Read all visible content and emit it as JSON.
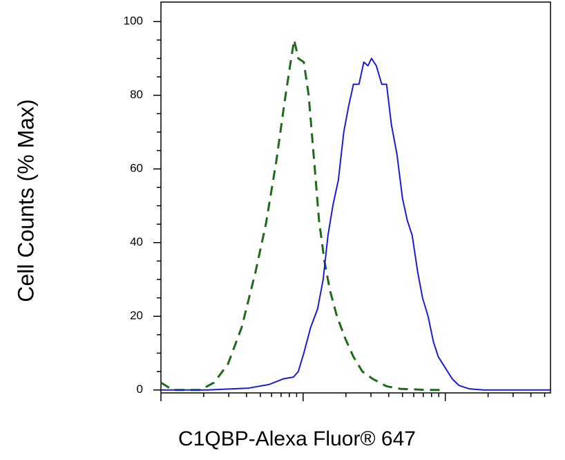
{
  "chart_data": {
    "type": "line",
    "x_label": "C1QBP-Alexa Fluor® 647",
    "y_label": "Cell Counts (% Max)",
    "xlog": true,
    "xlim": [
      0,
      2.74
    ],
    "xticks": [
      0,
      1,
      2
    ],
    "ylim": [
      -0.8,
      105.3
    ],
    "yticks": [
      0,
      20,
      40,
      60,
      80,
      100
    ],
    "series": [
      {
        "color": "#1b6a1b",
        "dashed": true,
        "x": [
          0,
          0.083,
          0.277,
          0.374,
          0.471,
          0.568,
          0.665,
          0.738,
          0.811,
          0.869,
          0.908,
          0.937,
          0.966,
          1.005,
          1.039,
          1.078,
          1.112,
          1.15,
          1.189,
          1.238,
          1.296,
          1.354,
          1.417,
          1.49,
          1.587,
          1.684,
          1.879,
          1.976
        ],
        "values": [
          2,
          0,
          0,
          2,
          7,
          17,
          32,
          45,
          62,
          78,
          88,
          95,
          90,
          89,
          80,
          62,
          46,
          35,
          27,
          20,
          14,
          9,
          5,
          3,
          1,
          0.3,
          0,
          0
        ]
      },
      {
        "color": "#1a1ad8",
        "dashed": false,
        "x": [
          0,
          0.325,
          0.617,
          0.762,
          0.859,
          0.932,
          0.966,
          1.005,
          1.053,
          1.102,
          1.141,
          1.175,
          1.209,
          1.248,
          1.286,
          1.32,
          1.354,
          1.393,
          1.427,
          1.456,
          1.481,
          1.515,
          1.553,
          1.587,
          1.621,
          1.66,
          1.699,
          1.733,
          1.767,
          1.806,
          1.84,
          1.879,
          1.917,
          1.951,
          2.0,
          2.049,
          2.097,
          2.17,
          2.267,
          2.738
        ],
        "values": [
          0,
          0,
          0.5,
          1.5,
          3,
          3.5,
          5,
          10,
          17,
          22,
          30,
          42,
          50,
          57,
          70,
          77,
          83,
          83,
          89,
          88,
          90,
          88,
          83,
          83,
          72,
          64,
          52,
          46,
          42,
          32,
          25,
          20,
          13,
          9,
          6,
          3,
          1.2,
          0.3,
          0,
          0
        ]
      }
    ]
  }
}
